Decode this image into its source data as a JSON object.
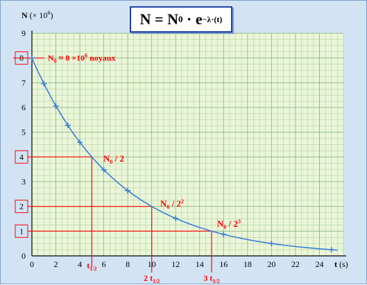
{
  "chart_data": {
    "type": "line",
    "title": "",
    "ylabel": "N",
    "ylabel_unit": "(× 10⁶)",
    "xlabel": "t",
    "xlabel_unit": "(s)",
    "xlim": [
      0,
      26
    ],
    "ylim": [
      0,
      9
    ],
    "x_ticks": [
      0,
      2,
      4,
      6,
      8,
      10,
      12,
      14,
      16,
      18,
      20,
      22,
      24
    ],
    "y_ticks": [
      0,
      1,
      2,
      3,
      4,
      5,
      6,
      7,
      8,
      9
    ],
    "grid": true,
    "series": [
      {
        "x": [
          0,
          1,
          2,
          3,
          4,
          6,
          8,
          12,
          16,
          20,
          25
        ],
        "y": [
          8.0,
          6.96,
          6.06,
          5.28,
          4.59,
          3.48,
          2.64,
          1.52,
          0.87,
          0.5,
          0.25
        ]
      }
    ],
    "formula": {
      "lhs": "N",
      "eq": "=",
      "n": "N",
      "sub": "0",
      "dot": "·",
      "e": "e",
      "exp": "−λ·(t)"
    },
    "annotations": [
      {
        "n": "N",
        "sub": "0",
        "text": " ≈ 8 ×10",
        "sup": "6",
        "rest": " noyaux",
        "y": 8
      },
      {
        "text": "N",
        "sub": "0",
        "tail": " / 2",
        "sup": "",
        "y": 4,
        "x": 5
      },
      {
        "text": "N",
        "sub": "0",
        "tail": " / 2",
        "sup": "2",
        "y": 2,
        "x": 10
      },
      {
        "text": "N",
        "sub": "0",
        "tail": " / 2",
        "sup": "3",
        "y": 1,
        "x": 15
      }
    ],
    "boxed_y_labels": [
      "8",
      "4",
      "2",
      "1"
    ],
    "half_life_labels": [
      {
        "pre": "",
        "t": "t",
        "sub": "1/2",
        "x": 5
      },
      {
        "pre": "2 ",
        "t": "t",
        "sub": "1/2",
        "x": 10
      },
      {
        "pre": "3 ",
        "t": "t",
        "sub": "1/2",
        "x": 15
      }
    ]
  },
  "colors": {
    "background": "#d2e3f4",
    "plot_background": "#eaf6d8",
    "grid": "#a7c89a",
    "curve": "#3a7fd9",
    "guide_lines": "#ff0000",
    "annotation_text": "#ff0000",
    "box_border": "#1f3faa"
  }
}
